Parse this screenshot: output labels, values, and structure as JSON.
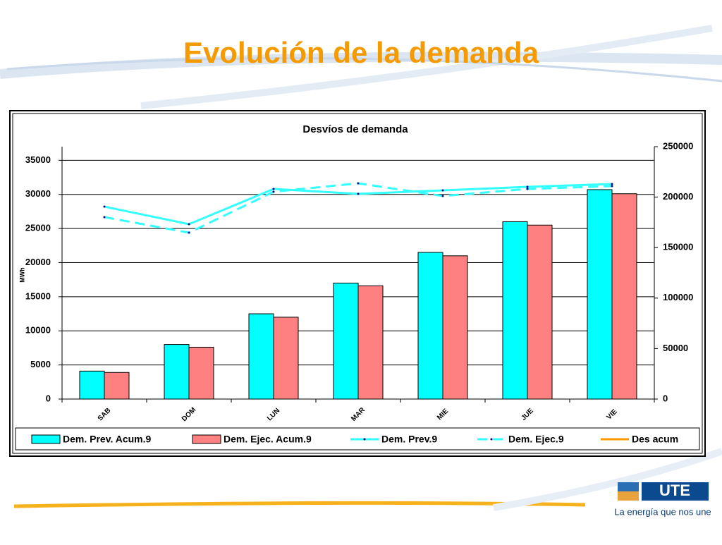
{
  "slide_title": "Evolución de la demanda",
  "chart_data": {
    "type": "bar",
    "title": "Desvíos de demanda",
    "y_label": "MWh",
    "categories": [
      "SAB",
      "DOM",
      "LUN",
      "MAR",
      "MIE",
      "JUE",
      "VIE"
    ],
    "ylim": [
      0,
      37000
    ],
    "yticks": [
      0,
      5000,
      10000,
      15000,
      20000,
      25000,
      30000,
      35000
    ],
    "y2lim": [
      0,
      250000
    ],
    "y2ticks": [
      0,
      50000,
      100000,
      150000,
      200000,
      250000
    ],
    "grid": true,
    "series": [
      {
        "name": "Dem. Prev. Acum.9",
        "type": "bar",
        "color": "#00ffff",
        "values": [
          4100,
          8000,
          12500,
          17000,
          21500,
          26000,
          30700
        ]
      },
      {
        "name": "Dem. Ejec. Acum.9",
        "type": "bar",
        "color": "#ff8080",
        "values": [
          3900,
          7600,
          12000,
          16600,
          21000,
          25500,
          30100
        ]
      },
      {
        "name": "Dem. Prev.9",
        "type": "line",
        "axis": "y2",
        "color": "#33ffff",
        "values": [
          190600,
          173200,
          208100,
          203200,
          206700,
          210200,
          213000
        ]
      },
      {
        "name": "Dem. Ejec.9",
        "type": "line",
        "dashed": true,
        "axis": "y2",
        "color": "#33ffff",
        "values": [
          180200,
          164800,
          205300,
          213700,
          201100,
          208100,
          210900
        ]
      },
      {
        "name": "Des acum",
        "type": "line",
        "axis": "y2",
        "color": "#ff9900",
        "values": [
          null,
          null,
          null,
          null,
          null,
          null,
          null
        ]
      }
    ]
  },
  "logo": {
    "name": "UTE",
    "tagline": "La energía que nos une"
  }
}
